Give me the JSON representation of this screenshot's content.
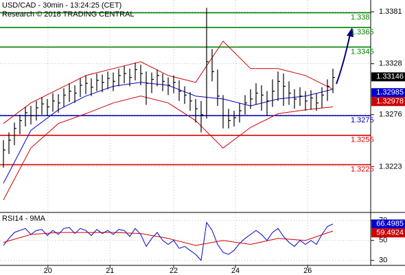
{
  "chart_data": [
    {
      "type": "hlc",
      "title": "USD/CAD - 30min - 13:24:25 (CET)",
      "subtitle": "Research © 2018 TRADING CENTRAL",
      "x": [
        0,
        1,
        2,
        3,
        4,
        5,
        6,
        7,
        8,
        9,
        10,
        11,
        12,
        13,
        14,
        15,
        16,
        17,
        18,
        19,
        20,
        21,
        22,
        23,
        24,
        25,
        26,
        27,
        28,
        29,
        30,
        31,
        32,
        33,
        34,
        35,
        36,
        37,
        38,
        39,
        40,
        41,
        42,
        43,
        44,
        45,
        46,
        47,
        48,
        49,
        50,
        51,
        52,
        53,
        54,
        55,
        56,
        57,
        58,
        59,
        60
      ],
      "high": [
        1.325,
        1.3258,
        1.3268,
        1.3276,
        1.3284,
        1.3285,
        1.329,
        1.3294,
        1.3292,
        1.3298,
        1.3297,
        1.3303,
        1.3308,
        1.3306,
        1.3313,
        1.3316,
        1.3313,
        1.3318,
        1.3317,
        1.332,
        1.3319,
        1.3323,
        1.3326,
        1.3323,
        1.3329,
        1.3327,
        1.332,
        1.3319,
        1.3322,
        1.3318,
        1.3314,
        1.3316,
        1.3311,
        1.3305,
        1.3299,
        1.3292,
        1.329,
        1.3385,
        1.3343,
        1.3322,
        1.3296,
        1.3282,
        1.328,
        1.3288,
        1.3296,
        1.3302,
        1.3308,
        1.3306,
        1.33,
        1.3312,
        1.332,
        1.3318,
        1.331,
        1.3302,
        1.3304,
        1.33,
        1.3301,
        1.3298,
        1.3304,
        1.3312,
        1.3323
      ],
      "low": [
        1.3222,
        1.3236,
        1.3245,
        1.3256,
        1.3264,
        1.3266,
        1.327,
        1.3276,
        1.3275,
        1.3279,
        1.3278,
        1.3284,
        1.3289,
        1.3288,
        1.3294,
        1.3297,
        1.3295,
        1.33,
        1.3299,
        1.3302,
        1.33,
        1.3305,
        1.3308,
        1.3305,
        1.3311,
        1.3306,
        1.3286,
        1.3298,
        1.3305,
        1.33,
        1.3296,
        1.3298,
        1.329,
        1.3287,
        1.328,
        1.3268,
        1.3258,
        1.3272,
        1.331,
        1.3285,
        1.3262,
        1.3262,
        1.3264,
        1.3268,
        1.3276,
        1.3282,
        1.3286,
        1.328,
        1.3275,
        1.3284,
        1.329,
        1.3285,
        1.3286,
        1.3282,
        1.3285,
        1.328,
        1.3281,
        1.328,
        1.3283,
        1.329,
        1.3298
      ],
      "close": [
        1.324,
        1.325,
        1.3262,
        1.327,
        1.3278,
        1.3275,
        1.3283,
        1.3287,
        1.3284,
        1.329,
        1.3288,
        1.3296,
        1.33,
        1.3298,
        1.3306,
        1.3308,
        1.3304,
        1.3311,
        1.3309,
        1.3313,
        1.331,
        1.3316,
        1.3318,
        1.3314,
        1.3322,
        1.3318,
        1.3308,
        1.3312,
        1.3316,
        1.331,
        1.3306,
        1.3309,
        1.33,
        1.3296,
        1.329,
        1.3282,
        1.3276,
        1.333,
        1.332,
        1.3295,
        1.3275,
        1.327,
        1.3273,
        1.328,
        1.3288,
        1.3292,
        1.3298,
        1.3296,
        1.329,
        1.33,
        1.331,
        1.3305,
        1.3298,
        1.3292,
        1.3295,
        1.329,
        1.3293,
        1.3288,
        1.3296,
        1.3305,
        1.3314
      ],
      "color": "#000000",
      "overlays": [
        {
          "color": "#0000cc",
          "x": [
            0,
            5,
            10,
            15,
            20,
            25,
            30,
            35,
            40,
            45,
            50,
            55,
            60
          ],
          "values": [
            1.3206,
            1.326,
            1.3281,
            1.3295,
            1.3305,
            1.3309,
            1.3306,
            1.3295,
            1.3292,
            1.3285,
            1.3292,
            1.3295,
            1.3302
          ]
        },
        {
          "color": "#cc0000",
          "x": [
            0,
            5,
            10,
            15,
            20,
            25,
            30,
            35,
            40,
            45,
            50,
            55,
            60
          ],
          "values": [
            1.3267,
            1.3288,
            1.3302,
            1.3316,
            1.3323,
            1.333,
            1.3316,
            1.3309,
            1.3351,
            1.3323,
            1.3323,
            1.3316,
            1.3302
          ]
        },
        {
          "color": "#cc0000",
          "x": [
            0,
            5,
            10,
            15,
            20,
            25,
            30,
            35,
            40,
            45,
            50,
            55,
            60
          ],
          "values": [
            1.3189,
            1.3242,
            1.3267,
            1.3277,
            1.3288,
            1.3295,
            1.3288,
            1.327,
            1.3242,
            1.3263,
            1.3277,
            1.3281,
            1.3284
          ]
        }
      ],
      "levels": [
        {
          "value": 1.338,
          "color": "#008000"
        },
        {
          "value": 1.3365,
          "color": "#008000"
        },
        {
          "value": 1.3345,
          "color": "#008000"
        },
        {
          "value": 1.3275,
          "color": "#0000aa"
        },
        {
          "value": 1.3255,
          "color": "#dd0000"
        },
        {
          "value": 1.3225,
          "color": "#dd0000"
        }
      ],
      "markers": [
        {
          "value": 1.33146,
          "color": "#000000"
        },
        {
          "value": 1.32985,
          "color": "#0000cc"
        },
        {
          "value": 1.32978,
          "color": "#cc0000"
        }
      ],
      "xlim": [
        -0.625,
        66.875
      ],
      "ylim": [
        1.3177,
        1.3393
      ],
      "yticks": [
        1.3381,
        1.3328,
        1.3276,
        1.3223
      ],
      "grid": true
    },
    {
      "type": "line",
      "title": "RSI14 - 9MA",
      "series": [
        {
          "color": "#0000cc",
          "x": [
            0,
            1,
            2,
            3,
            4,
            5,
            6,
            7,
            8,
            9,
            10,
            11,
            12,
            13,
            14,
            15,
            16,
            17,
            18,
            19,
            20,
            21,
            22,
            23,
            24,
            25,
            26,
            27,
            28,
            29,
            30,
            31,
            32,
            33,
            34,
            35,
            36,
            37,
            38,
            39,
            40,
            41,
            42,
            43,
            44,
            45,
            46,
            47,
            48,
            49,
            50,
            51,
            52,
            53,
            54,
            55,
            56,
            57,
            58,
            59,
            60
          ],
          "values": [
            45,
            52,
            58,
            60,
            62,
            56,
            60,
            61,
            55,
            60,
            56,
            62,
            63,
            57,
            62,
            60,
            55,
            61,
            57,
            60,
            56,
            61,
            60,
            54,
            62,
            56,
            44,
            52,
            58,
            50,
            46,
            50,
            42,
            44,
            40,
            36,
            30,
            68,
            60,
            46,
            38,
            36,
            40,
            47,
            52,
            56,
            60,
            56,
            50,
            58,
            62,
            54,
            48,
            44,
            50,
            46,
            50,
            46,
            56,
            64,
            66.4985
          ]
        },
        {
          "color": "#cc0000",
          "x": [
            0,
            5,
            10,
            15,
            20,
            25,
            30,
            35,
            40,
            45,
            50,
            55,
            60
          ],
          "values": [
            48,
            56,
            58,
            58,
            58,
            57,
            52,
            45,
            50,
            46,
            52,
            50,
            59.4924
          ]
        }
      ],
      "markers": [
        {
          "value": 66.4985,
          "color": "#0000cc"
        },
        {
          "value": 59.4924,
          "color": "#cc0000"
        }
      ],
      "xlim": [
        -0.625,
        66.875
      ],
      "xticks": [
        {
          "value": 8.1,
          "label": "20"
        },
        {
          "value": 19.4,
          "label": "21"
        },
        {
          "value": 31,
          "label": "22"
        },
        {
          "value": 42.25,
          "label": "24"
        },
        {
          "value": 55.4,
          "label": "26"
        }
      ],
      "ylim": [
        25,
        76
      ],
      "yticks": [
        70,
        50,
        30
      ],
      "grid": true
    }
  ]
}
